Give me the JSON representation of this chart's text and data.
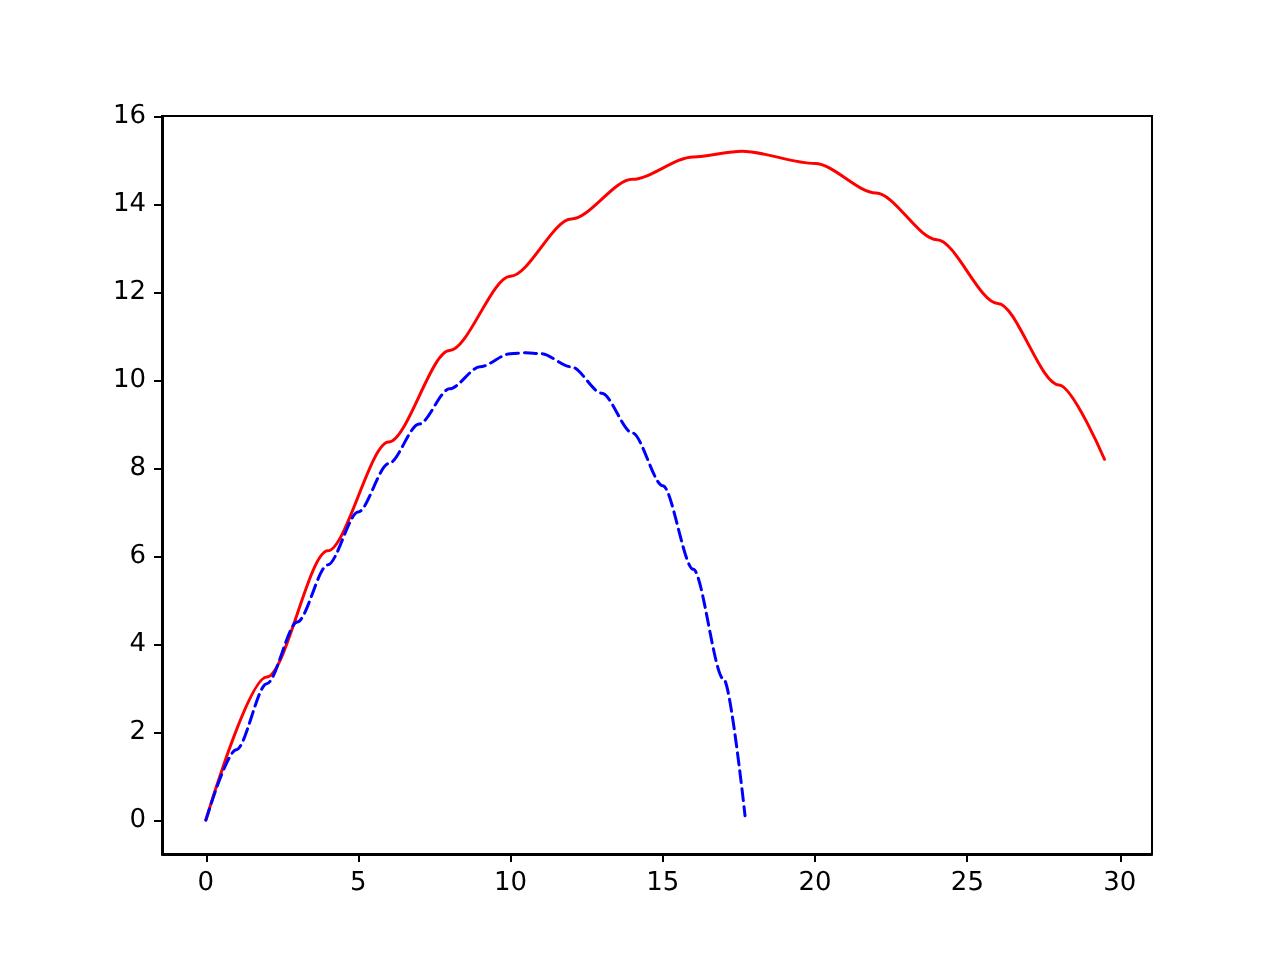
{
  "chart_data": {
    "type": "line",
    "xlim": [
      -1.44,
      31.06
    ],
    "ylim": [
      -0.77,
      16
    ],
    "xticks": [
      0,
      5,
      10,
      15,
      20,
      25,
      30
    ],
    "yticks": [
      0,
      2,
      4,
      6,
      8,
      10,
      12,
      14,
      16
    ],
    "marker": "none",
    "series": [
      {
        "color": "#ff0000",
        "line_style": "solid",
        "x": [
          0,
          2,
          4,
          6,
          8,
          10,
          12,
          14,
          16,
          17.6,
          20,
          22,
          24,
          26,
          28,
          29.5
        ],
        "values": [
          0,
          3.25,
          6.12,
          8.59,
          10.67,
          12.36,
          13.66,
          14.56,
          15.07,
          15.2,
          14.92,
          14.25,
          13.19,
          11.74,
          9.89,
          8.2
        ]
      },
      {
        "color": "#0000ff",
        "line_style": "dashed",
        "x": [
          0,
          1,
          2,
          3,
          4,
          5,
          6,
          7,
          8,
          9,
          10,
          10.5,
          11,
          12,
          13,
          14,
          15,
          16,
          17,
          17.7
        ],
        "values": [
          0,
          1.6,
          3.1,
          4.5,
          5.8,
          7.0,
          8.1,
          9.0,
          9.8,
          10.3,
          10.6,
          10.62,
          10.6,
          10.3,
          9.7,
          8.8,
          7.6,
          5.7,
          3.2,
          0.1
        ]
      }
    ]
  }
}
